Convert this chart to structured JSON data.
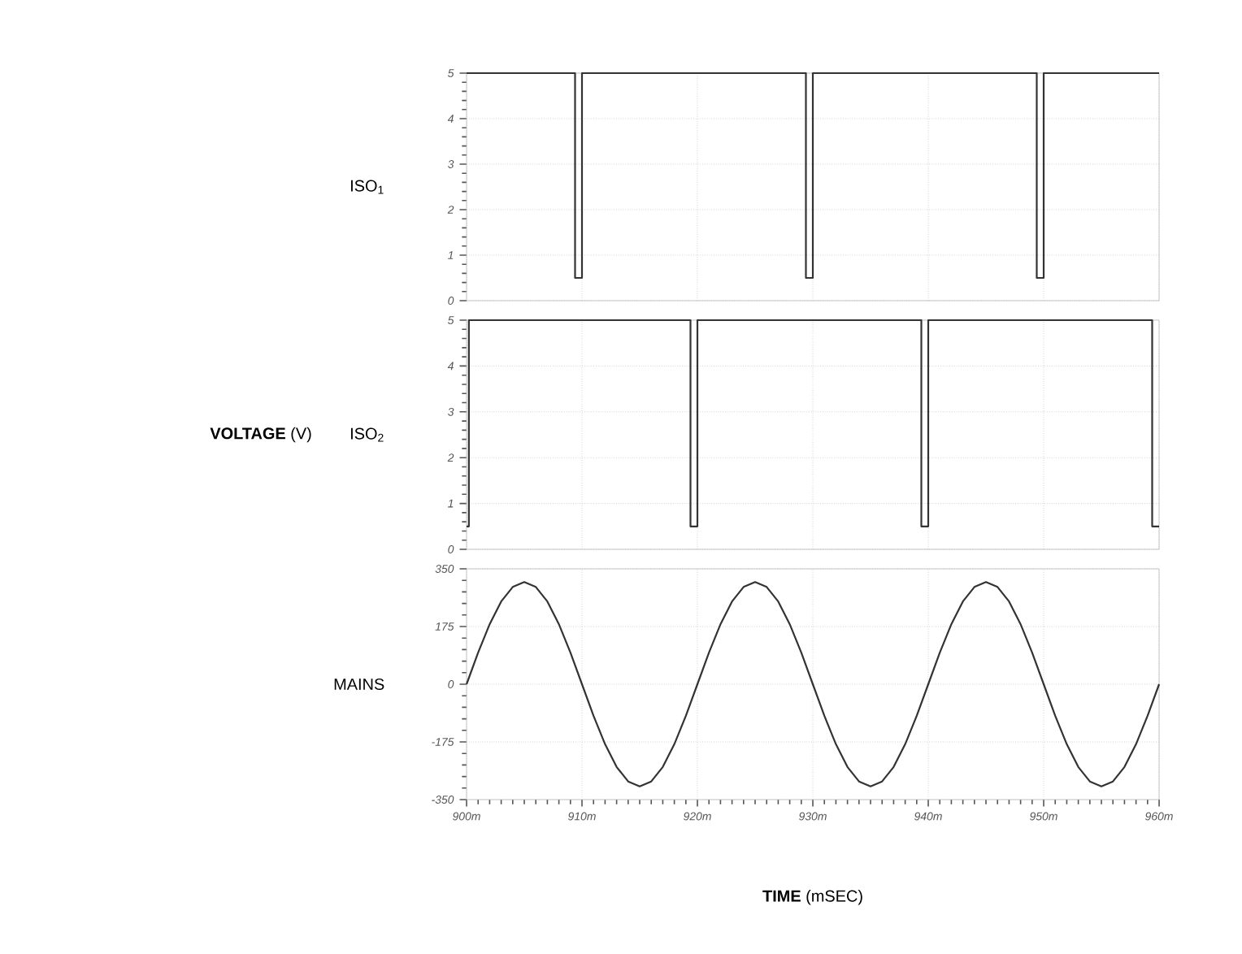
{
  "chart_data": [
    {
      "type": "line",
      "ylabel": "ISO$_{1}$",
      "color": "#333333",
      "grid": true,
      "tick_labels": "y",
      "x": [
        900,
        909.4,
        909.4,
        910,
        910,
        929.4,
        929.4,
        930,
        930,
        949.4,
        949.4,
        950,
        950,
        960
      ],
      "values": [
        5,
        5,
        0.5,
        0.5,
        5,
        5,
        0.5,
        0.5,
        5,
        5,
        0.5,
        0.5,
        5,
        5
      ],
      "xlim": [
        900,
        960
      ],
      "ylim": [
        0,
        5
      ],
      "yticks": [
        0,
        1,
        2,
        3,
        4,
        5
      ]
    },
    {
      "type": "line",
      "ylabel": "ISO$_{2}$",
      "color": "#333333",
      "grid": true,
      "tick_labels": "y",
      "annotations": [
        "**VOLTAGE** (V)"
      ],
      "x": [
        900,
        900.2,
        900.2,
        919.4,
        919.4,
        920,
        920,
        939.4,
        939.4,
        940,
        940,
        959.4,
        959.4,
        960
      ],
      "values": [
        0.5,
        0.5,
        5,
        5,
        0.5,
        0.5,
        5,
        5,
        0.5,
        0.5,
        5,
        5,
        0.5,
        0.5
      ],
      "xlim": [
        900,
        960
      ],
      "ylim": [
        0,
        5
      ],
      "yticks": [
        0,
        1,
        2,
        3,
        4,
        5
      ]
    },
    {
      "type": "line",
      "ylabel": "MAINS",
      "xlabel": "**TIME** (mSEC)",
      "color": "#333333",
      "grid": true,
      "x": [
        900,
        901,
        902,
        903,
        904,
        905,
        906,
        907,
        908,
        909,
        910,
        911,
        912,
        913,
        914,
        915,
        916,
        917,
        918,
        919,
        920,
        921,
        922,
        923,
        924,
        925,
        926,
        927,
        928,
        929,
        930,
        931,
        932,
        933,
        934,
        935,
        936,
        937,
        938,
        939,
        940,
        941,
        942,
        943,
        944,
        945,
        946,
        947,
        948,
        949,
        950,
        951,
        952,
        953,
        954,
        955,
        956,
        957,
        958,
        959,
        960
      ],
      "values": [
        0,
        96,
        182,
        251,
        295,
        310,
        295,
        251,
        182,
        96,
        0,
        -96,
        -182,
        -251,
        -295,
        -310,
        -295,
        -251,
        -182,
        -96,
        0,
        96,
        182,
        251,
        295,
        310,
        295,
        251,
        182,
        96,
        0,
        -96,
        -182,
        -251,
        -295,
        -310,
        -295,
        -251,
        -182,
        -96,
        0,
        96,
        182,
        251,
        295,
        310,
        295,
        251,
        182,
        96,
        0,
        -96,
        -182,
        -251,
        -295,
        -310,
        -295,
        -251,
        -182,
        -96,
        0
      ],
      "xlim": [
        900,
        960
      ],
      "xticks": [
        {
          "value": 900,
          "label": "900m"
        },
        {
          "value": 910,
          "label": "910m"
        },
        {
          "value": 920,
          "label": "920m"
        },
        {
          "value": 930,
          "label": "930m"
        },
        {
          "value": 940,
          "label": "940m"
        },
        {
          "value": 950,
          "label": "950m"
        },
        {
          "value": 960,
          "label": "960m"
        }
      ],
      "ylim": [
        -350,
        350
      ],
      "yticks": [
        -350,
        -175,
        0,
        175,
        350
      ]
    }
  ]
}
